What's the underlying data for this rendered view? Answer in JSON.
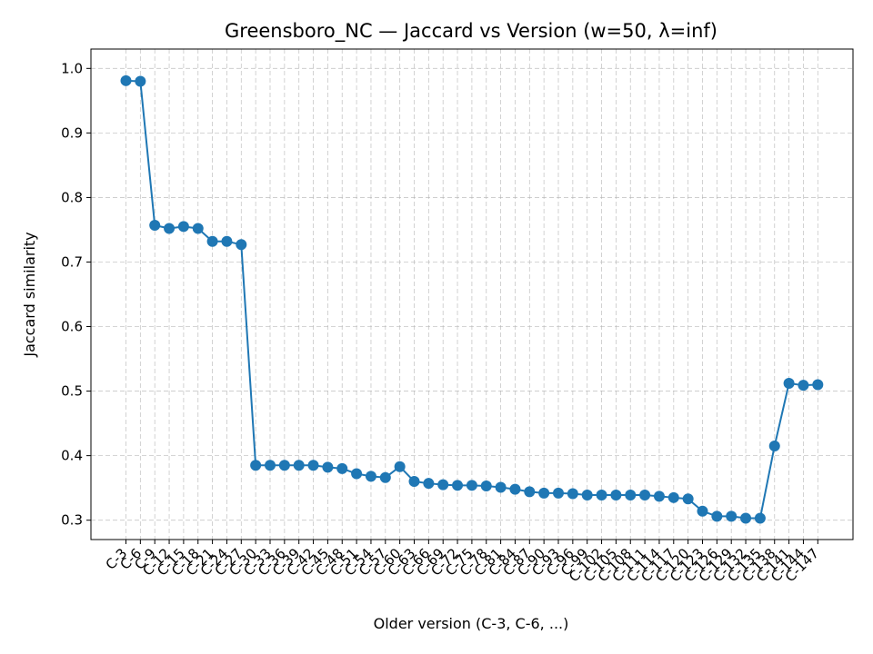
{
  "chart_data": {
    "type": "line",
    "title": "Greensboro_NC — Jaccard vs Version (w=50, λ=inf)",
    "xlabel": "Older version (C-3, C-6, ...)",
    "ylabel": "Jaccard similarity",
    "ylim": [
      0.27,
      1.03
    ],
    "yticks": [
      0.3,
      0.4,
      0.5,
      0.6,
      0.7,
      0.8,
      0.9,
      1.0
    ],
    "grid": true,
    "grid_style": "dashed",
    "line_color": "#1f77b4",
    "marker": "circle",
    "categories": [
      "C-3",
      "C-6",
      "C-9",
      "C-12",
      "C-15",
      "C-18",
      "C-21",
      "C-24",
      "C-27",
      "C-30",
      "C-33",
      "C-36",
      "C-39",
      "C-42",
      "C-45",
      "C-48",
      "C-51",
      "C-54",
      "C-57",
      "C-60",
      "C-63",
      "C-66",
      "C-69",
      "C-72",
      "C-75",
      "C-78",
      "C-81",
      "C-84",
      "C-87",
      "C-90",
      "C-93",
      "C-96",
      "C-99",
      "C-102",
      "C-105",
      "C-108",
      "C-111",
      "C-114",
      "C-117",
      "C-120",
      "C-123",
      "C-126",
      "C-129",
      "C-132",
      "C-135",
      "C-138",
      "C-141",
      "C-144",
      "C-147"
    ],
    "series": [
      {
        "values": [
          0.981,
          0.98,
          0.757,
          0.752,
          0.755,
          0.752,
          0.732,
          0.732,
          0.727,
          0.385,
          0.385,
          0.385,
          0.385,
          0.385,
          0.382,
          0.38,
          0.372,
          0.368,
          0.366,
          0.383,
          0.36,
          0.357,
          0.355,
          0.354,
          0.354,
          0.353,
          0.351,
          0.348,
          0.344,
          0.342,
          0.342,
          0.341,
          0.339,
          0.339,
          0.339,
          0.339,
          0.339,
          0.337,
          0.335,
          0.333,
          0.314,
          0.306,
          0.306,
          0.303,
          0.303,
          0.415,
          0.512,
          0.509,
          0.51
        ]
      }
    ]
  }
}
